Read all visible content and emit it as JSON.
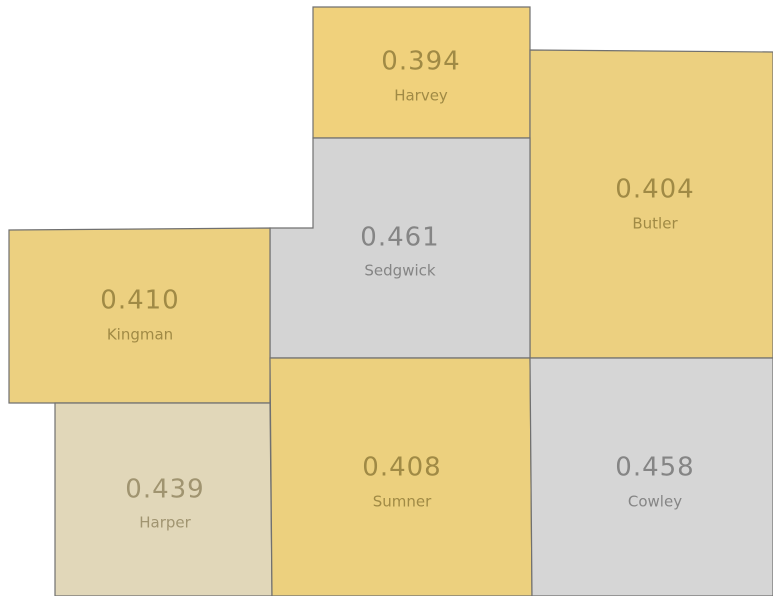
{
  "regions": [
    {
      "name": "Harvey",
      "value": "0.394",
      "color": "#f0d17c"
    },
    {
      "name": "Butler",
      "value": "0.404",
      "color": "#ecd080"
    },
    {
      "name": "Sedgwick",
      "value": "0.461",
      "color": "#d4d4d4"
    },
    {
      "name": "Kingman",
      "value": "0.410",
      "color": "#ecd080"
    },
    {
      "name": "Harper",
      "value": "0.439",
      "color": "#e1d7b9"
    },
    {
      "name": "Sumner",
      "value": "0.408",
      "color": "#ecd07e"
    },
    {
      "name": "Cowley",
      "value": "0.458",
      "color": "#d6d6d6"
    }
  ]
}
